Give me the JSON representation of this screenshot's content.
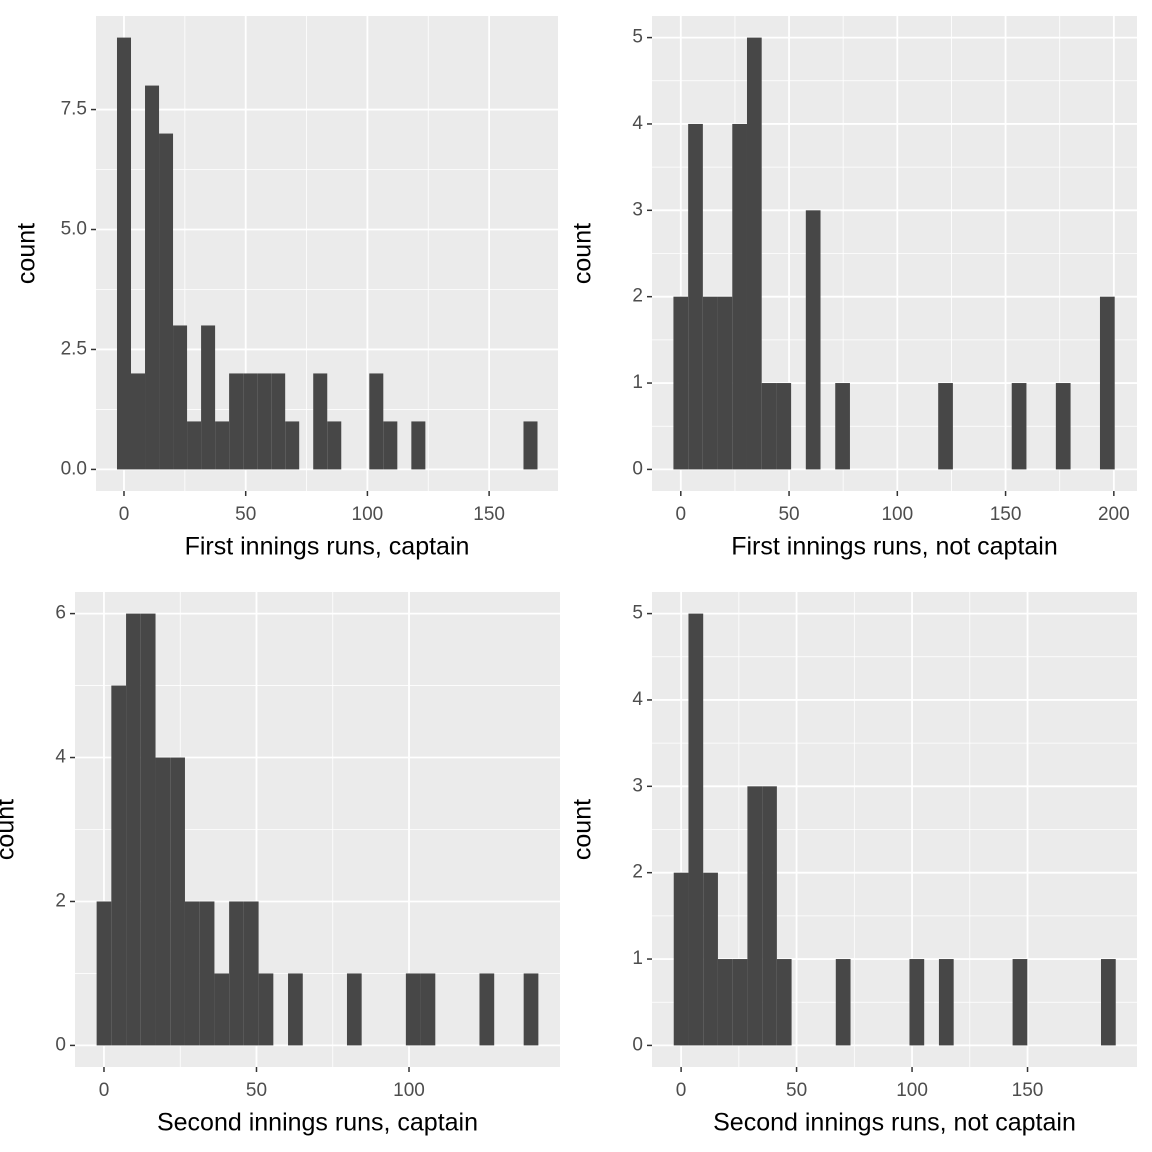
{
  "chart_data": [
    {
      "type": "histogram",
      "xlabel": "First innings runs, captain",
      "ylabel": "count",
      "color": "#474747",
      "grid": true,
      "bins": [
        -2.88,
        2.88,
        8.64,
        14.4,
        20.15,
        25.91,
        31.67,
        37.43,
        43.19,
        48.95,
        54.71,
        60.47,
        66.22,
        71.98,
        77.74,
        83.5,
        89.26,
        95.02,
        100.78,
        106.53,
        112.29,
        118.05,
        123.81,
        129.57,
        135.33,
        141.09,
        146.84,
        152.6,
        158.36,
        164.12,
        169.88
      ],
      "values": [
        9,
        2,
        8,
        7,
        3,
        1,
        3,
        1,
        2,
        2,
        2,
        2,
        1,
        0,
        2,
        1,
        0,
        0,
        2,
        1,
        0,
        1,
        0,
        0,
        0,
        0,
        0,
        0,
        0,
        1
      ],
      "xlim": [
        -11.5,
        178.3
      ],
      "ylim": [
        -0.45,
        9.45
      ],
      "xticks": [
        0,
        50,
        100,
        150
      ],
      "yticks": [
        {
          "value": 0,
          "label": "0.0"
        },
        {
          "value": 2.5,
          "label": "2.5"
        },
        {
          "value": 5,
          "label": "5.0"
        },
        {
          "value": 7.5,
          "label": "7.5"
        }
      ]
    },
    {
      "type": "histogram",
      "xlabel": "First innings runs, not captain",
      "ylabel": "count",
      "color": "#474747",
      "grid": true,
      "bins": [
        -3.4,
        3.4,
        10.19,
        16.98,
        23.78,
        30.57,
        37.36,
        44.16,
        50.95,
        57.74,
        64.53,
        71.33,
        78.12,
        84.91,
        91.71,
        98.5,
        105.29,
        112.09,
        118.88,
        125.67,
        132.47,
        139.26,
        146.05,
        152.84,
        159.64,
        166.43,
        173.22,
        180.02,
        186.81,
        193.6,
        200.4
      ],
      "values": [
        2,
        4,
        2,
        2,
        4,
        5,
        1,
        1,
        0,
        3,
        0,
        1,
        0,
        0,
        0,
        0,
        0,
        0,
        1,
        0,
        0,
        0,
        0,
        1,
        0,
        0,
        1,
        0,
        0,
        2
      ],
      "xlim": [
        -13.3,
        210.7
      ],
      "ylim": [
        -0.25,
        5.25
      ],
      "xticks": [
        0,
        50,
        100,
        150,
        200
      ],
      "yticks": [
        0,
        1,
        2,
        3,
        4,
        5
      ]
    },
    {
      "type": "histogram",
      "xlabel": "Second innings runs, captain",
      "ylabel": "count",
      "color": "#474747",
      "grid": true,
      "bins": [
        -2.41,
        2.41,
        7.24,
        12.07,
        16.9,
        21.72,
        26.55,
        31.38,
        36.21,
        41.03,
        45.86,
        50.69,
        55.52,
        60.34,
        65.17,
        70.0,
        74.83,
        79.66,
        84.48,
        89.31,
        94.14,
        98.97,
        103.79,
        108.62,
        113.45,
        118.28,
        123.1,
        127.93,
        132.76,
        137.59,
        142.41
      ],
      "values": [
        2,
        5,
        6,
        6,
        4,
        4,
        2,
        2,
        1,
        2,
        2,
        1,
        0,
        1,
        0,
        0,
        0,
        1,
        0,
        0,
        0,
        1,
        1,
        0,
        0,
        0,
        1,
        0,
        0,
        1
      ],
      "xlim": [
        -9.5,
        149.5
      ],
      "ylim": [
        -0.3,
        6.3
      ],
      "xticks": [
        0,
        50,
        100
      ],
      "yticks": [
        0,
        2,
        4,
        6
      ]
    },
    {
      "type": "histogram",
      "xlabel": "Second innings runs, not captain",
      "ylabel": "count",
      "color": "#474747",
      "grid": true,
      "bins": [
        -3.19,
        3.19,
        9.57,
        15.95,
        22.33,
        28.71,
        35.09,
        41.47,
        47.84,
        54.22,
        60.6,
        66.98,
        73.36,
        79.74,
        86.12,
        92.5,
        98.88,
        105.26,
        111.64,
        118.02,
        124.4,
        130.78,
        137.16,
        143.53,
        149.91,
        156.29,
        162.67,
        169.05,
        175.43,
        181.81,
        188.19
      ],
      "values": [
        2,
        5,
        2,
        1,
        1,
        3,
        3,
        1,
        0,
        0,
        0,
        1,
        0,
        0,
        0,
        0,
        1,
        0,
        1,
        0,
        0,
        0,
        0,
        1,
        0,
        0,
        0,
        0,
        0,
        1
      ],
      "xlim": [
        -12.6,
        197.4
      ],
      "ylim": [
        -0.25,
        5.25
      ],
      "xticks": [
        0,
        50,
        100,
        150
      ],
      "yticks": [
        0,
        1,
        2,
        3,
        4,
        5
      ]
    }
  ]
}
